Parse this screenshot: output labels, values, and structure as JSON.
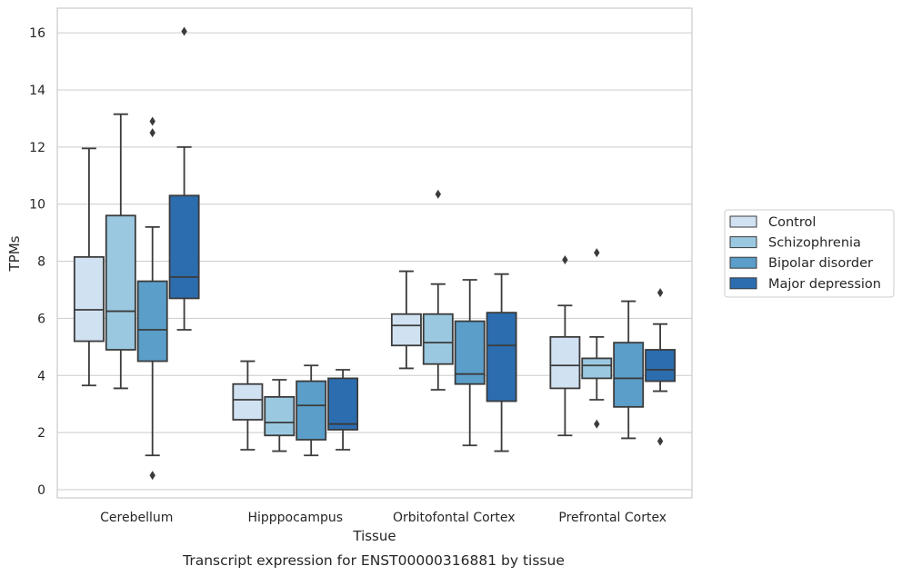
{
  "chart_data": {
    "type": "box",
    "xlabel": "Tissue",
    "ylabel": "TPMs",
    "caption": "Transcript expression for ENST00000316881 by tissue",
    "ylim": [
      -0.3,
      16.8
    ],
    "yticks": [
      0,
      2,
      4,
      6,
      8,
      10,
      12,
      14,
      16
    ],
    "grid": "horizontal",
    "legend_position": "right",
    "categories": [
      "Cerebellum",
      "Hipppocampus",
      "Orbitofontal Cortex",
      "Prefrontal Cortex"
    ],
    "series": [
      {
        "name": "Control",
        "color": "#d0e1f2",
        "boxes": [
          {
            "whislo": 3.65,
            "q1": 5.2,
            "med": 6.3,
            "q3": 8.15,
            "whishi": 11.95,
            "fliers": []
          },
          {
            "whislo": 1.4,
            "q1": 2.45,
            "med": 3.15,
            "q3": 3.7,
            "whishi": 4.5,
            "fliers": []
          },
          {
            "whislo": 4.25,
            "q1": 5.05,
            "med": 5.75,
            "q3": 6.15,
            "whishi": 7.65,
            "fliers": []
          },
          {
            "whislo": 1.9,
            "q1": 3.55,
            "med": 4.35,
            "q3": 5.35,
            "whishi": 6.45,
            "fliers": [
              8.05
            ]
          }
        ]
      },
      {
        "name": "Schizophrenia",
        "color": "#9ac8e0",
        "boxes": [
          {
            "whislo": 3.55,
            "q1": 4.9,
            "med": 6.25,
            "q3": 9.6,
            "whishi": 13.15,
            "fliers": []
          },
          {
            "whislo": 1.35,
            "q1": 1.9,
            "med": 2.35,
            "q3": 3.25,
            "whishi": 3.85,
            "fliers": []
          },
          {
            "whislo": 3.5,
            "q1": 4.4,
            "med": 5.15,
            "q3": 6.15,
            "whishi": 7.2,
            "fliers": [
              10.35
            ]
          },
          {
            "whislo": 3.15,
            "q1": 3.9,
            "med": 4.35,
            "q3": 4.6,
            "whishi": 5.35,
            "fliers": [
              8.3,
              2.3
            ]
          }
        ]
      },
      {
        "name": "Bipolar disorder",
        "color": "#5a9ec9",
        "boxes": [
          {
            "whislo": 1.2,
            "q1": 4.5,
            "med": 5.6,
            "q3": 7.3,
            "whishi": 9.2,
            "fliers": [
              12.9,
              12.5,
              0.5
            ]
          },
          {
            "whislo": 1.2,
            "q1": 1.75,
            "med": 2.95,
            "q3": 3.8,
            "whishi": 4.35,
            "fliers": []
          },
          {
            "whislo": 1.55,
            "q1": 3.7,
            "med": 4.05,
            "q3": 5.9,
            "whishi": 7.35,
            "fliers": []
          },
          {
            "whislo": 1.8,
            "q1": 2.9,
            "med": 3.9,
            "q3": 5.15,
            "whishi": 6.6,
            "fliers": []
          }
        ]
      },
      {
        "name": "Major depression",
        "color": "#2b6daf",
        "boxes": [
          {
            "whislo": 5.6,
            "q1": 6.7,
            "med": 7.45,
            "q3": 10.3,
            "whishi": 12.0,
            "fliers": [
              16.05
            ]
          },
          {
            "whislo": 1.4,
            "q1": 2.1,
            "med": 2.3,
            "q3": 3.9,
            "whishi": 4.2,
            "fliers": []
          },
          {
            "whislo": 1.35,
            "q1": 3.1,
            "med": 5.05,
            "q3": 6.2,
            "whishi": 7.55,
            "fliers": []
          },
          {
            "whislo": 3.45,
            "q1": 3.8,
            "med": 4.2,
            "q3": 4.9,
            "whishi": 5.8,
            "fliers": [
              6.9,
              1.7
            ]
          }
        ]
      }
    ]
  }
}
